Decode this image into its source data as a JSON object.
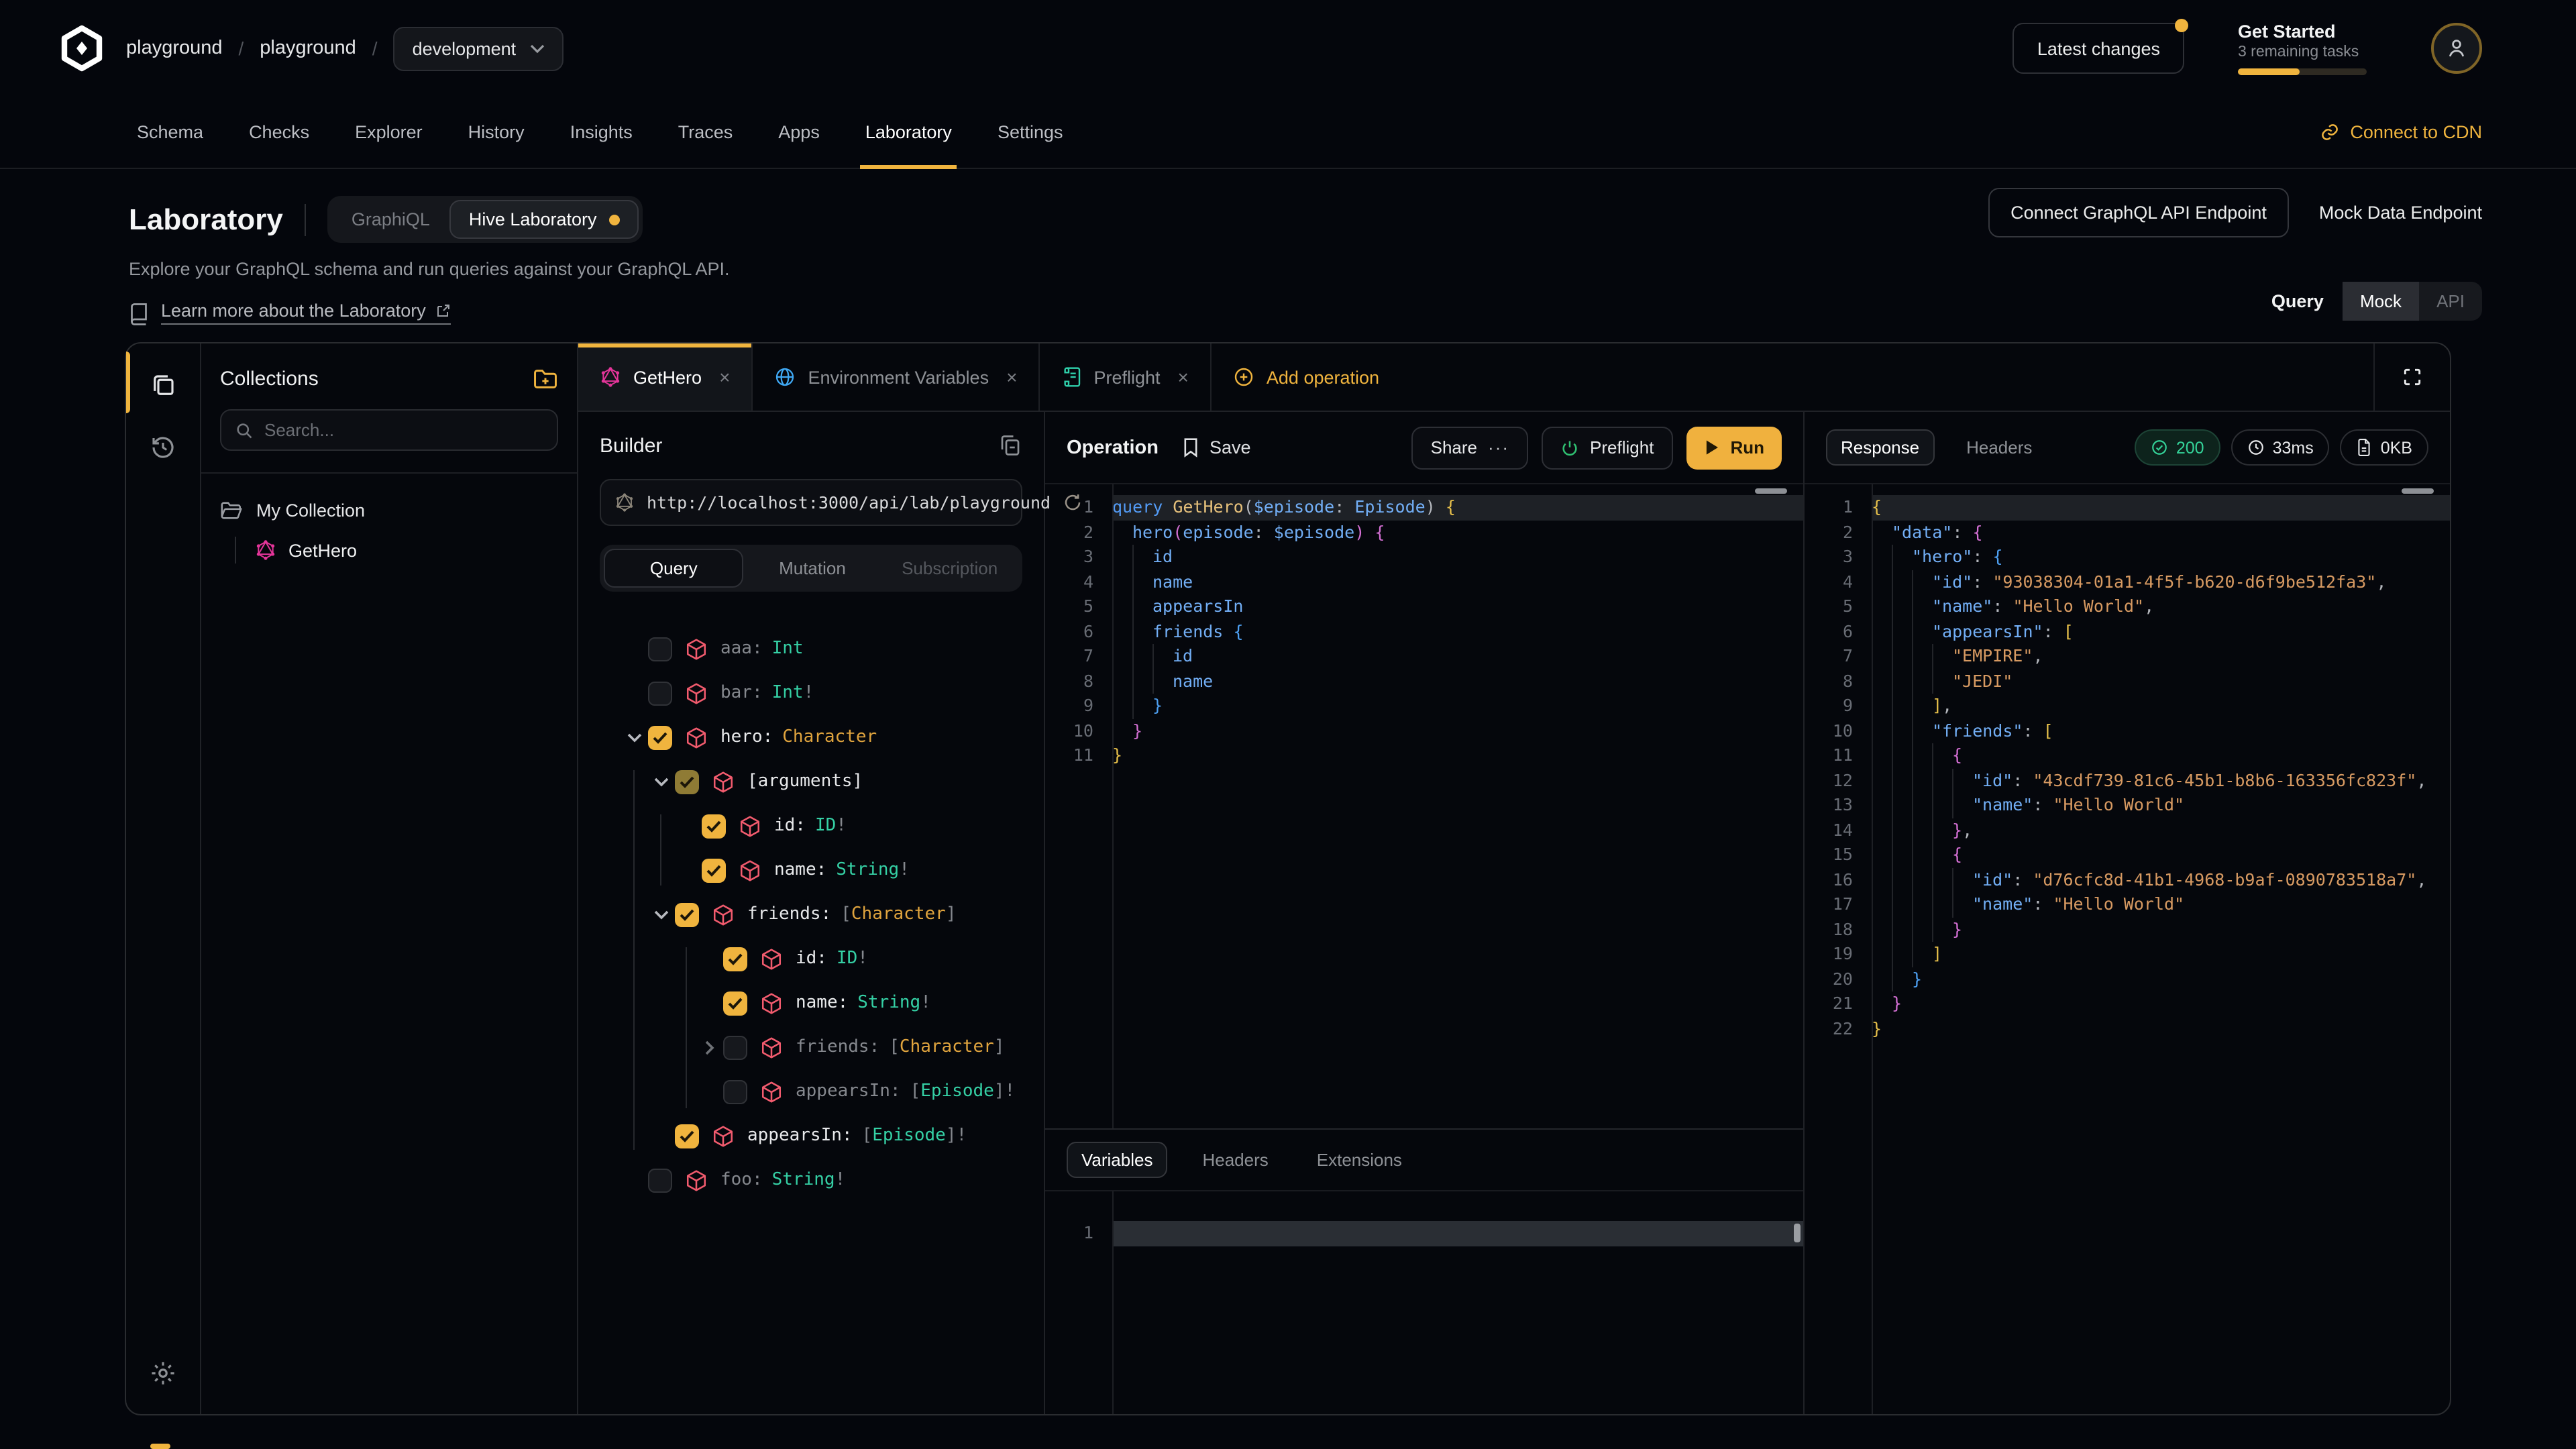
{
  "header": {
    "breadcrumb": {
      "org": "playground",
      "project": "playground",
      "separator": "/",
      "target": "development"
    },
    "latest_changes_label": "Latest changes",
    "get_started": {
      "title": "Get Started",
      "subtitle": "3 remaining tasks",
      "progress_pct": 48
    }
  },
  "nav": {
    "tabs": [
      {
        "label": "Schema",
        "active": false
      },
      {
        "label": "Checks",
        "active": false
      },
      {
        "label": "Explorer",
        "active": false
      },
      {
        "label": "History",
        "active": false
      },
      {
        "label": "Insights",
        "active": false
      },
      {
        "label": "Traces",
        "active": false
      },
      {
        "label": "Apps",
        "active": false
      },
      {
        "label": "Laboratory",
        "active": true
      },
      {
        "label": "Settings",
        "active": false
      }
    ],
    "connect_cdn_label": "Connect to CDN"
  },
  "hero": {
    "title": "Laboratory",
    "mode_toggle": {
      "options": [
        "GraphiQL",
        "Hive Laboratory"
      ],
      "active": "Hive Laboratory"
    },
    "subtitle": "Explore your GraphQL schema and run queries against your GraphQL API.",
    "learn_more_label": "Learn more about the Laboratory",
    "connect_endpoint_label": "Connect GraphQL API Endpoint",
    "mock_endpoint_label": "Mock Data Endpoint",
    "query_toggle": {
      "label": "Query",
      "options": [
        "Mock",
        "API"
      ],
      "active": "Mock"
    }
  },
  "collections": {
    "title": "Collections",
    "search_placeholder": "Search...",
    "folder_name": "My Collection",
    "operation_name": "GetHero"
  },
  "editor_tabs": [
    {
      "label": "GetHero",
      "icon": "graphql-icon",
      "closable": true,
      "active": true
    },
    {
      "label": "Environment Variables",
      "icon": "globe-icon",
      "closable": true,
      "active": false
    },
    {
      "label": "Preflight",
      "icon": "script-icon",
      "closable": true,
      "active": false
    },
    {
      "label": "Add operation",
      "icon": "plus-circle-icon",
      "action": true
    }
  ],
  "builder": {
    "title": "Builder",
    "endpoint_url": "http://localhost:3000/api/lab/playground",
    "operation_type_tabs": {
      "options": [
        "Query",
        "Mutation",
        "Subscription"
      ],
      "active": "Query",
      "disabled": "Subscription"
    },
    "fields": [
      {
        "name": "aaa",
        "depth": 0,
        "chevron": null,
        "checked": false,
        "type": [
          [
            "Int",
            "ty-t"
          ]
        ]
      },
      {
        "name": "bar",
        "depth": 0,
        "chevron": null,
        "checked": false,
        "type": [
          [
            "Int",
            "ty-t"
          ],
          [
            "!",
            "ty-p"
          ]
        ]
      },
      {
        "name": "hero",
        "depth": 0,
        "chevron": "down",
        "checked": true,
        "type": [
          [
            "Character",
            "ty-y"
          ]
        ]
      },
      {
        "name": "[arguments]",
        "depth": 1,
        "chevron": "down",
        "checked": true,
        "dim": true,
        "type": []
      },
      {
        "name": "id",
        "depth": 2,
        "chevron": null,
        "checked": true,
        "type": [
          [
            "ID",
            "ty-t"
          ],
          [
            "!",
            "ty-p"
          ]
        ]
      },
      {
        "name": "name",
        "depth": 2,
        "chevron": null,
        "checked": true,
        "type": [
          [
            "String",
            "ty-t"
          ],
          [
            "!",
            "ty-p"
          ]
        ]
      },
      {
        "name": "friends",
        "depth": 1,
        "chevron": "down",
        "checked": true,
        "type": [
          [
            "[",
            "ty-p"
          ],
          [
            "Character",
            "ty-y"
          ],
          [
            "]",
            "ty-p"
          ]
        ]
      },
      {
        "name": "id",
        "depth": 3,
        "chevron": null,
        "checked": true,
        "type": [
          [
            "ID",
            "ty-t"
          ],
          [
            "!",
            "ty-p"
          ]
        ]
      },
      {
        "name": "name",
        "depth": 3,
        "chevron": null,
        "checked": true,
        "type": [
          [
            "String",
            "ty-t"
          ],
          [
            "!",
            "ty-p"
          ]
        ]
      },
      {
        "name": "friends",
        "depth": 3,
        "chevron": "right",
        "checked": false,
        "type": [
          [
            "[",
            "ty-p"
          ],
          [
            "Character",
            "ty-y"
          ],
          [
            "]",
            "ty-p"
          ]
        ]
      },
      {
        "name": "appearsIn",
        "depth": 3,
        "chevron": null,
        "checked": false,
        "type": [
          [
            "[",
            "ty-p"
          ],
          [
            "Episode",
            "ty-t"
          ],
          [
            "]",
            "ty-p"
          ],
          [
            "!",
            "ty-p"
          ]
        ]
      },
      {
        "name": "appearsIn",
        "depth": 1,
        "chevron": null,
        "checked": true,
        "type": [
          [
            "[",
            "ty-p"
          ],
          [
            "Episode",
            "ty-t"
          ],
          [
            "]",
            "ty-p"
          ],
          [
            "!",
            "ty-p"
          ]
        ]
      },
      {
        "name": "foo",
        "depth": 0,
        "chevron": null,
        "checked": false,
        "type": [
          [
            "String",
            "ty-t"
          ],
          [
            "!",
            "ty-p"
          ]
        ]
      }
    ]
  },
  "operation": {
    "title": "Operation",
    "save_label": "Save",
    "share_label": "Share",
    "preflight_label": "Preflight",
    "run_label": "Run",
    "code_lines": [
      {
        "n": 1,
        "hl": true,
        "g": 0,
        "t": [
          [
            "query ",
            "t-k"
          ],
          [
            "GetHero",
            "t-n"
          ],
          [
            "(",
            "t-p"
          ],
          [
            "$episode",
            "t-f"
          ],
          [
            ": ",
            "t-p"
          ],
          [
            "Episode",
            "t-f"
          ],
          [
            ") ",
            "t-p"
          ],
          [
            "{",
            "t-b1"
          ]
        ]
      },
      {
        "n": 2,
        "hl": false,
        "g": 1,
        "t": [
          [
            "hero",
            "t-f"
          ],
          [
            "(",
            "t-b2"
          ],
          [
            "episode",
            "t-f"
          ],
          [
            ": ",
            "t-p"
          ],
          [
            "$episode",
            "t-f"
          ],
          [
            ") ",
            "t-b2"
          ],
          [
            "{",
            "t-b2"
          ]
        ]
      },
      {
        "n": 3,
        "hl": false,
        "g": 2,
        "t": [
          [
            "id",
            "t-f"
          ]
        ]
      },
      {
        "n": 4,
        "hl": false,
        "g": 2,
        "t": [
          [
            "name",
            "t-f"
          ]
        ]
      },
      {
        "n": 5,
        "hl": false,
        "g": 2,
        "t": [
          [
            "appearsIn",
            "t-f"
          ]
        ]
      },
      {
        "n": 6,
        "hl": false,
        "g": 2,
        "t": [
          [
            "friends ",
            "t-f"
          ],
          [
            "{",
            "t-b3"
          ]
        ]
      },
      {
        "n": 7,
        "hl": false,
        "g": 3,
        "t": [
          [
            "id",
            "t-f"
          ]
        ]
      },
      {
        "n": 8,
        "hl": false,
        "g": 3,
        "t": [
          [
            "name",
            "t-f"
          ]
        ]
      },
      {
        "n": 9,
        "hl": false,
        "g": 2,
        "t": [
          [
            "}",
            "t-b3"
          ]
        ]
      },
      {
        "n": 10,
        "hl": false,
        "g": 1,
        "t": [
          [
            "}",
            "t-b2"
          ]
        ]
      },
      {
        "n": 11,
        "hl": false,
        "g": 0,
        "t": [
          [
            "}",
            "t-b1"
          ]
        ]
      }
    ]
  },
  "variables_panel": {
    "tabs": [
      "Variables",
      "Headers",
      "Extensions"
    ],
    "active": "Variables",
    "line_number": "1"
  },
  "response": {
    "tabs": [
      "Response",
      "Headers"
    ],
    "active": "Response",
    "status_badge": "200",
    "time_badge": "33ms",
    "size_badge": "0KB",
    "json_lines": [
      {
        "n": 1,
        "hl": true,
        "g": 0,
        "t": [
          [
            "{",
            "t-b1"
          ]
        ]
      },
      {
        "n": 2,
        "hl": false,
        "g": 1,
        "t": [
          [
            "\"data\"",
            "t-f"
          ],
          [
            ": ",
            "t-p"
          ],
          [
            "{",
            "t-b2"
          ]
        ]
      },
      {
        "n": 3,
        "hl": false,
        "g": 2,
        "t": [
          [
            "\"hero\"",
            "t-f"
          ],
          [
            ": ",
            "t-p"
          ],
          [
            "{",
            "t-b3"
          ]
        ]
      },
      {
        "n": 4,
        "hl": false,
        "g": 3,
        "t": [
          [
            "\"id\"",
            "t-f"
          ],
          [
            ": ",
            "t-p"
          ],
          [
            "\"93038304-01a1-4f5f-b620-d6f9be512fa3\"",
            "t-s"
          ],
          [
            ",",
            "t-p"
          ]
        ]
      },
      {
        "n": 5,
        "hl": false,
        "g": 3,
        "t": [
          [
            "\"name\"",
            "t-f"
          ],
          [
            ": ",
            "t-p"
          ],
          [
            "\"Hello World\"",
            "t-s"
          ],
          [
            ",",
            "t-p"
          ]
        ]
      },
      {
        "n": 6,
        "hl": false,
        "g": 3,
        "t": [
          [
            "\"appearsIn\"",
            "t-f"
          ],
          [
            ": ",
            "t-p"
          ],
          [
            "[",
            "t-b1"
          ]
        ]
      },
      {
        "n": 7,
        "hl": false,
        "g": 4,
        "t": [
          [
            "\"EMPIRE\"",
            "t-s"
          ],
          [
            ",",
            "t-p"
          ]
        ]
      },
      {
        "n": 8,
        "hl": false,
        "g": 4,
        "t": [
          [
            "\"JEDI\"",
            "t-s"
          ]
        ]
      },
      {
        "n": 9,
        "hl": false,
        "g": 3,
        "t": [
          [
            "]",
            "t-b1"
          ],
          [
            ",",
            "t-p"
          ]
        ]
      },
      {
        "n": 10,
        "hl": false,
        "g": 3,
        "t": [
          [
            "\"friends\"",
            "t-f"
          ],
          [
            ": ",
            "t-p"
          ],
          [
            "[",
            "t-b1"
          ]
        ]
      },
      {
        "n": 11,
        "hl": false,
        "g": 4,
        "t": [
          [
            "{",
            "t-b2"
          ]
        ]
      },
      {
        "n": 12,
        "hl": false,
        "g": 5,
        "t": [
          [
            "\"id\"",
            "t-f"
          ],
          [
            ": ",
            "t-p"
          ],
          [
            "\"43cdf739-81c6-45b1-b8b6-163356fc823f\"",
            "t-s"
          ],
          [
            ",",
            "t-p"
          ]
        ]
      },
      {
        "n": 13,
        "hl": false,
        "g": 5,
        "t": [
          [
            "\"name\"",
            "t-f"
          ],
          [
            ": ",
            "t-p"
          ],
          [
            "\"Hello World\"",
            "t-s"
          ]
        ]
      },
      {
        "n": 14,
        "hl": false,
        "g": 4,
        "t": [
          [
            "}",
            "t-b2"
          ],
          [
            ",",
            "t-p"
          ]
        ]
      },
      {
        "n": 15,
        "hl": false,
        "g": 4,
        "t": [
          [
            "{",
            "t-b2"
          ]
        ]
      },
      {
        "n": 16,
        "hl": false,
        "g": 5,
        "t": [
          [
            "\"id\"",
            "t-f"
          ],
          [
            ": ",
            "t-p"
          ],
          [
            "\"d76cfc8d-41b1-4968-b9af-0890783518a7\"",
            "t-s"
          ],
          [
            ",",
            "t-p"
          ]
        ]
      },
      {
        "n": 17,
        "hl": false,
        "g": 5,
        "t": [
          [
            "\"name\"",
            "t-f"
          ],
          [
            ": ",
            "t-p"
          ],
          [
            "\"Hello World\"",
            "t-s"
          ]
        ]
      },
      {
        "n": 18,
        "hl": false,
        "g": 4,
        "t": [
          [
            "}",
            "t-b2"
          ]
        ]
      },
      {
        "n": 19,
        "hl": false,
        "g": 3,
        "t": [
          [
            "]",
            "t-b1"
          ]
        ]
      },
      {
        "n": 20,
        "hl": false,
        "g": 2,
        "t": [
          [
            "}",
            "t-b3"
          ]
        ]
      },
      {
        "n": 21,
        "hl": false,
        "g": 1,
        "t": [
          [
            "}",
            "t-b2"
          ]
        ]
      },
      {
        "n": 22,
        "hl": false,
        "g": 0,
        "t": [
          [
            "}",
            "t-b1"
          ]
        ]
      }
    ]
  },
  "colors": {
    "accent": "#f0b43e",
    "graphql_pink": "#e5359a",
    "field_pink": "#f25b6e",
    "type_teal": "#35d0a5",
    "type_yellow": "#e0a43e",
    "status_green": "#34d399",
    "code_blue": "#72aef5",
    "string_orange": "#d79a62"
  }
}
